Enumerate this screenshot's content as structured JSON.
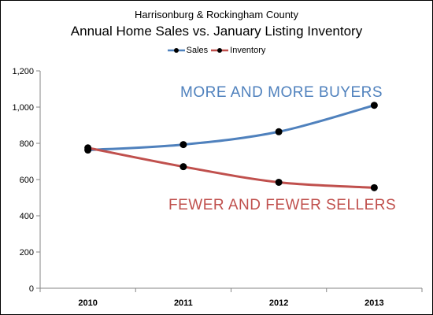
{
  "chart_data": {
    "type": "line",
    "subtitle": "Harrisonburg & Rockingham County",
    "title": "Annual Home Sales vs. January Listing Inventory",
    "categories": [
      "2010",
      "2011",
      "2012",
      "2013"
    ],
    "series": [
      {
        "name": "Sales",
        "values": [
          763,
          793,
          864,
          1010
        ],
        "color": "#4f81bd"
      },
      {
        "name": "Inventory",
        "values": [
          775,
          671,
          585,
          555
        ],
        "color": "#c0504d"
      }
    ],
    "ylim": [
      0,
      1200
    ],
    "yticks": [
      "0",
      "200",
      "400",
      "600",
      "800",
      "1,000",
      "1,200"
    ],
    "legend_position": "top",
    "grid": false,
    "annotations": [
      {
        "text": "MORE AND MORE BUYERS",
        "color": "#4f81bd"
      },
      {
        "text": "FEWER AND FEWER SELLERS",
        "color": "#c0504d"
      }
    ]
  }
}
